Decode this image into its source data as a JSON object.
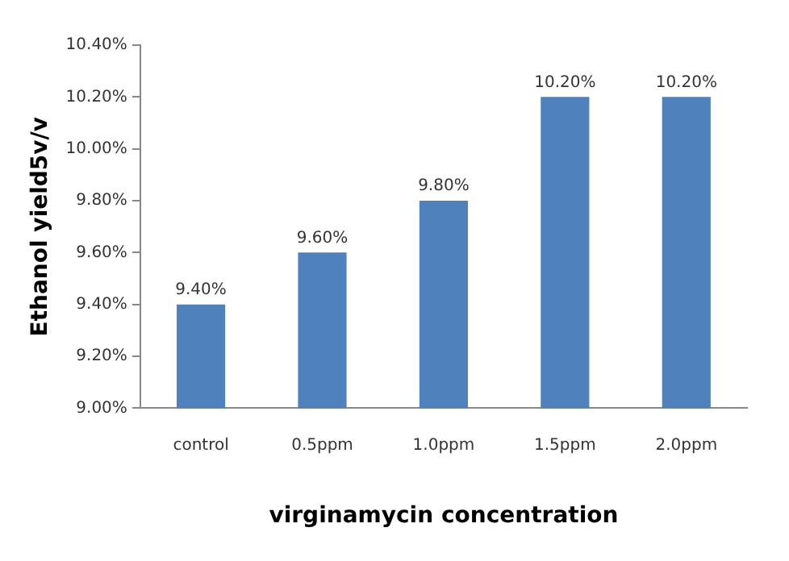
{
  "chart_data": {
    "type": "bar",
    "xlabel": "virginamycin concentration",
    "ylabel": "Ethanol yield5v/v",
    "categories": [
      "control",
      "0.5ppm",
      "1.0ppm",
      "1.5ppm",
      "2.0ppm"
    ],
    "values": [
      9.4,
      9.6,
      9.8,
      10.2,
      10.2
    ],
    "value_labels": [
      "9.40%",
      "9.60%",
      "9.80%",
      "10.20%",
      "10.20%"
    ],
    "color": "#4f81bd",
    "ylim": [
      9,
      10.4
    ],
    "yticks": [
      {
        "value": 9,
        "label": "9.00%"
      },
      {
        "value": 9.2,
        "label": "9.20%"
      },
      {
        "value": 9.4,
        "label": "9.40%"
      },
      {
        "value": 9.6,
        "label": "9.60%"
      },
      {
        "value": 9.8,
        "label": "9.80%"
      },
      {
        "value": 10,
        "label": "10.00%"
      },
      {
        "value": 10.2,
        "label": "10.20%"
      },
      {
        "value": 10.4,
        "label": "10.40%"
      }
    ],
    "grid": false,
    "legend": false
  }
}
